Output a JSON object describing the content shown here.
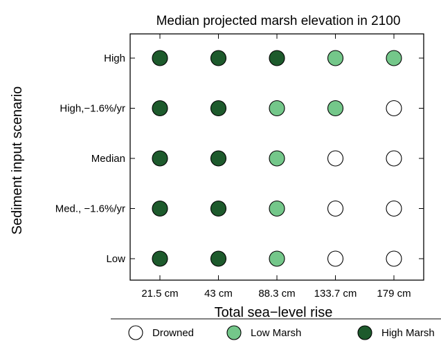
{
  "chart_data": {
    "type": "scatter",
    "title": "Median projected marsh elevation in 2100",
    "xlabel": "Total sea−level rise",
    "ylabel": "Sediment input scenario",
    "x_categories": [
      "21.5 cm",
      "43 cm",
      "88.3 cm",
      "133.7 cm",
      "179 cm"
    ],
    "y_categories": [
      "High",
      "High,−1.6%/yr",
      "Median",
      "Med., −1.6%/yr",
      "Low"
    ],
    "legend": {
      "placement": "bottom",
      "entries": [
        {
          "key": "drowned",
          "label": "Drowned",
          "color": "#ffffff"
        },
        {
          "key": "low",
          "label": "Low Marsh",
          "color": "#74c78a"
        },
        {
          "key": "high",
          "label": "High Marsh",
          "color": "#1d5a2c"
        }
      ]
    },
    "grid": false,
    "values": [
      [
        "high",
        "high",
        "high",
        "low",
        "low"
      ],
      [
        "high",
        "high",
        "low",
        "low",
        "drowned"
      ],
      [
        "high",
        "high",
        "low",
        "drowned",
        "drowned"
      ],
      [
        "high",
        "high",
        "low",
        "drowned",
        "drowned"
      ],
      [
        "high",
        "high",
        "low",
        "drowned",
        "drowned"
      ]
    ]
  }
}
